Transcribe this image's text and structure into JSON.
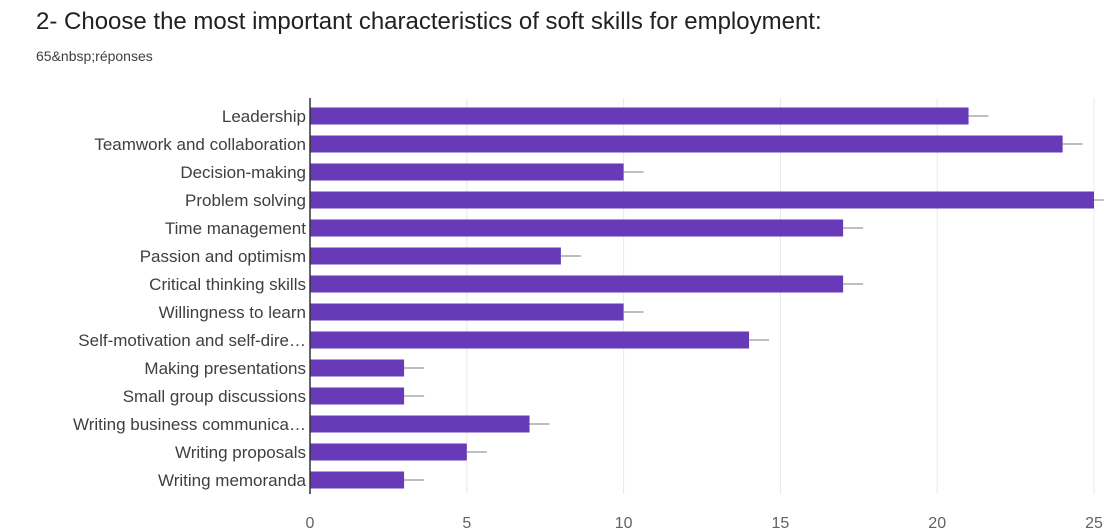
{
  "question": {
    "title": "2- Choose the most important characteristics of soft skills for employment:",
    "responses": "65&nbsp;réponses"
  },
  "chart_data": {
    "type": "bar",
    "orientation": "horizontal",
    "title": "2- Choose the most important characteristics of soft skills for employment:",
    "subtitle": "65&nbsp;réponses",
    "categories": [
      "Leadership",
      "Teamwork and collaboration",
      "Decision-making",
      "Problem solving",
      "Time management",
      "Passion and optimism",
      "Critical thinking skills",
      "Willingness to learn",
      "Self-motivation and self-dire…",
      "Making presentations",
      "Small group discussions",
      "Writing business communica…",
      "Writing proposals",
      "Writing memoranda"
    ],
    "values": [
      21,
      24,
      10,
      25,
      17,
      8,
      17,
      10,
      14,
      3,
      3,
      7,
      5,
      3
    ],
    "xlim": [
      0,
      25
    ],
    "xticks": [
      0,
      5,
      10,
      15,
      20,
      25
    ],
    "grid": true,
    "bar_color": "#673ab7",
    "xlabel": "",
    "ylabel": ""
  }
}
